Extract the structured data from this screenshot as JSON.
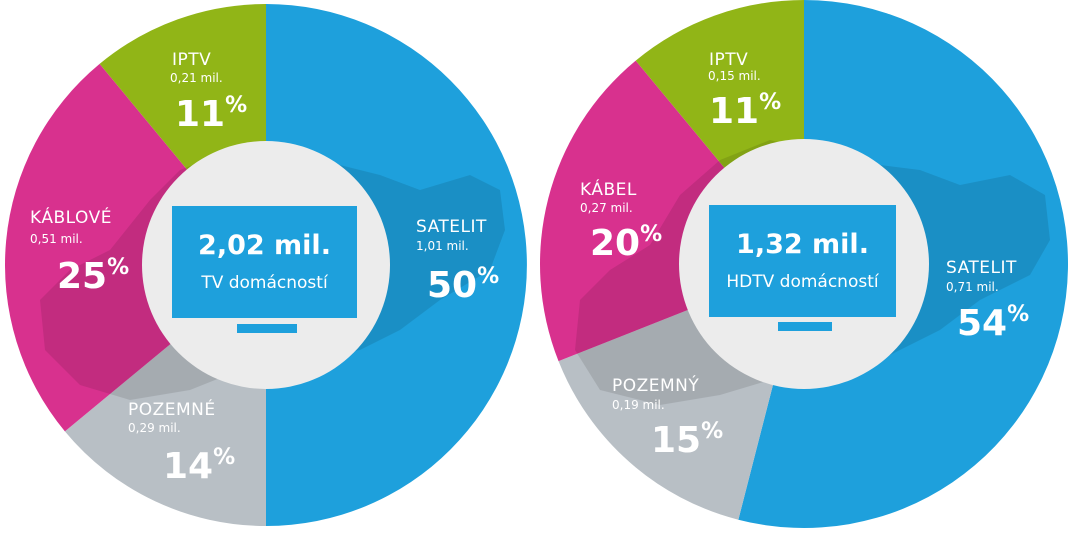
{
  "chart_data": [
    {
      "type": "pie",
      "center_label": {
        "value": "2,02 mil.",
        "caption": "TV domácností"
      },
      "slices": [
        {
          "label": "SATELIT",
          "sub": "1,01 mil.",
          "value": 50,
          "pct_text": "50",
          "color": "#1ea0dc"
        },
        {
          "label": "POZEMNÉ",
          "sub": "0,29 mil.",
          "value": 14,
          "pct_text": "14",
          "color": "#b8bfc5"
        },
        {
          "label": "KÁBLOVÉ",
          "sub": "0,51 mil.",
          "value": 25,
          "pct_text": "25",
          "color": "#d8318e"
        },
        {
          "label": "IPTV",
          "sub": "0,21 mil.",
          "value": 11,
          "pct_text": "11",
          "color": "#91b517"
        }
      ],
      "percent_symbol": "%"
    },
    {
      "type": "pie",
      "center_label": {
        "value": "1,32 mil.",
        "caption": "HDTV domácností"
      },
      "slices": [
        {
          "label": "SATELIT",
          "sub": "0,71 mil.",
          "value": 54,
          "pct_text": "54",
          "color": "#1ea0dc"
        },
        {
          "label": "POZEMNÝ",
          "sub": "0,19 mil.",
          "value": 15,
          "pct_text": "15",
          "color": "#b8bfc5"
        },
        {
          "label": "KÁBEL",
          "sub": "0,27 mil.",
          "value": 20,
          "pct_text": "20",
          "color": "#d8318e"
        },
        {
          "label": "IPTV",
          "sub": "0,15 mil.",
          "value": 11,
          "pct_text": "11",
          "color": "#91b517"
        }
      ],
      "percent_symbol": "%"
    }
  ],
  "colors": {
    "tv_box": "#1ea0dc",
    "hub": "#ececec",
    "map_overlay": "#000000",
    "label_on_grey": "#ffffff"
  }
}
